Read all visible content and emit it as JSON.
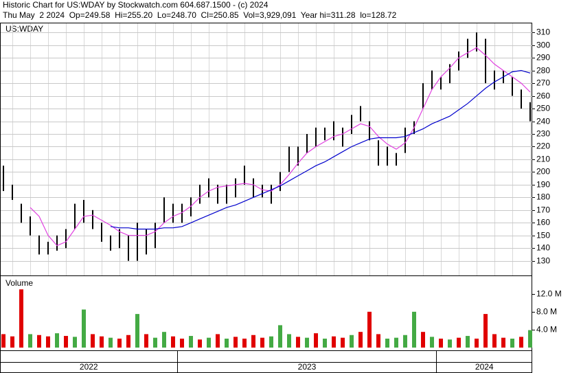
{
  "chart_data": [
    {
      "type": "ohlc",
      "title": "Historic Chart for US:WDAY by Stockwatch.com 604.687.1500 - (c) 2024",
      "subtitle": "Thu May  2 2024  Op=249.58  Hi=255.20  Lo=248.70  Cl=250.85  Vol=3,929,091  Year hi=311.28  lo=128.72",
      "label": "US:WDAY",
      "x": [
        "2022",
        "2022",
        "2022",
        "2022",
        "2022",
        "2022",
        "2022",
        "2022",
        "2022",
        "2022",
        "2022",
        "2022",
        "2022",
        "2022",
        "2022",
        "2022",
        "2022",
        "2022",
        "2022",
        "2022",
        "2023",
        "2023",
        "2023",
        "2023",
        "2023",
        "2023",
        "2023",
        "2023",
        "2023",
        "2023",
        "2023",
        "2023",
        "2023",
        "2023",
        "2023",
        "2023",
        "2023",
        "2023",
        "2023",
        "2023",
        "2023",
        "2023",
        "2023",
        "2023",
        "2023",
        "2023",
        "2023",
        "2023",
        "2023",
        "2024",
        "2024",
        "2024",
        "2024",
        "2024",
        "2024",
        "2024",
        "2024",
        "2024",
        "2024",
        "2024"
      ],
      "high": [
        205,
        190,
        175,
        165,
        150,
        145,
        150,
        155,
        175,
        178,
        170,
        160,
        150,
        155,
        150,
        160,
        155,
        160,
        180,
        175,
        175,
        180,
        190,
        195,
        190,
        190,
        195,
        205,
        195,
        190,
        190,
        200,
        220,
        220,
        230,
        235,
        235,
        240,
        235,
        245,
        252,
        240,
        225,
        220,
        215,
        235,
        240,
        270,
        280,
        275,
        285,
        295,
        305,
        310,
        305,
        280,
        280,
        275,
        265,
        255
      ],
      "low": [
        185,
        178,
        160,
        150,
        135,
        135,
        138,
        140,
        155,
        160,
        155,
        145,
        138,
        140,
        130,
        130,
        135,
        140,
        160,
        160,
        160,
        165,
        175,
        180,
        175,
        175,
        180,
        190,
        180,
        180,
        175,
        185,
        200,
        205,
        215,
        220,
        225,
        225,
        220,
        230,
        240,
        225,
        205,
        205,
        205,
        215,
        230,
        250,
        265,
        265,
        270,
        280,
        290,
        295,
        270,
        265,
        270,
        260,
        250,
        240
      ],
      "color": "#000000",
      "averages": [
        {
          "color": "#e040e0",
          "values": [
            null,
            null,
            null,
            172,
            165,
            150,
            142,
            145,
            155,
            165,
            166,
            162,
            158,
            153,
            150,
            150,
            150,
            153,
            160,
            165,
            168,
            173,
            180,
            185,
            188,
            189,
            190,
            191,
            190,
            186,
            185,
            190,
            198,
            207,
            215,
            220,
            224,
            228,
            230,
            234,
            238,
            236,
            228,
            222,
            218,
            223,
            235,
            250,
            265,
            275,
            282,
            290,
            294,
            298,
            292,
            285,
            280,
            275,
            270,
            263
          ]
        },
        {
          "color": "#0000cc",
          "values": [
            null,
            null,
            null,
            null,
            null,
            null,
            null,
            null,
            null,
            null,
            null,
            null,
            157,
            156,
            156,
            155,
            155,
            155,
            156,
            156,
            157,
            160,
            163,
            166,
            169,
            172,
            174,
            177,
            180,
            183,
            186,
            189,
            193,
            197,
            201,
            205,
            208,
            212,
            216,
            220,
            223,
            226,
            227,
            227,
            227,
            228,
            231,
            234,
            238,
            241,
            244,
            249,
            254,
            260,
            266,
            271,
            275,
            279,
            280,
            278
          ]
        }
      ],
      "ylim": [
        119,
        315
      ],
      "yticks": [
        130,
        140,
        150,
        160,
        170,
        180,
        190,
        200,
        210,
        220,
        230,
        240,
        250,
        260,
        270,
        280,
        290,
        300,
        310
      ],
      "grid": true
    },
    {
      "type": "bar",
      "label": "Volume",
      "values": [
        3000000,
        2500000,
        13000000,
        3000000,
        2800000,
        2500000,
        3200000,
        2600000,
        2400000,
        8500000,
        3000000,
        2500000,
        2200000,
        2000000,
        2800000,
        7500000,
        3000000,
        2200000,
        3500000,
        2500000,
        2000000,
        2600000,
        1800000,
        2200000,
        3000000,
        2000000,
        2400000,
        2000000,
        2800000,
        2200000,
        2500000,
        5000000,
        3000000,
        2400000,
        2200000,
        3200000,
        2000000,
        2500000,
        2200000,
        2800000,
        3500000,
        8000000,
        3000000,
        2000000,
        2200000,
        2800000,
        8000000,
        3500000,
        2400000,
        2000000,
        1800000,
        2200000,
        2600000,
        2000000,
        7500000,
        3000000,
        2200000,
        2000000,
        2400000,
        3900000
      ],
      "colors": [
        "#e00000",
        "#e00000",
        "#e00000",
        "#44aa44",
        "#e00000",
        "#e00000",
        "#44aa44",
        "#e00000",
        "#44aa44",
        "#44aa44",
        "#e00000",
        "#e00000",
        "#44aa44",
        "#e00000",
        "#e00000",
        "#44aa44",
        "#e00000",
        "#44aa44",
        "#44aa44",
        "#e00000",
        "#e00000",
        "#44aa44",
        "#e00000",
        "#44aa44",
        "#e00000",
        "#44aa44",
        "#e00000",
        "#e00000",
        "#e00000",
        "#e00000",
        "#44aa44",
        "#44aa44",
        "#44aa44",
        "#e00000",
        "#44aa44",
        "#e00000",
        "#44aa44",
        "#e00000",
        "#e00000",
        "#44aa44",
        "#e00000",
        "#e00000",
        "#e00000",
        "#44aa44",
        "#44aa44",
        "#44aa44",
        "#44aa44",
        "#e00000",
        "#44aa44",
        "#e00000",
        "#44aa44",
        "#e00000",
        "#44aa44",
        "#e00000",
        "#e00000",
        "#e00000",
        "#e00000",
        "#44aa44",
        "#e00000",
        "#44aa44"
      ],
      "ylim": [
        0,
        15800000
      ],
      "yticks": [
        {
          "value": 4000000,
          "label": "4.0 M"
        },
        {
          "value": 8000000,
          "label": "8.0 M"
        },
        {
          "value": 12000000,
          "label": "12.0 M"
        }
      ]
    }
  ]
}
